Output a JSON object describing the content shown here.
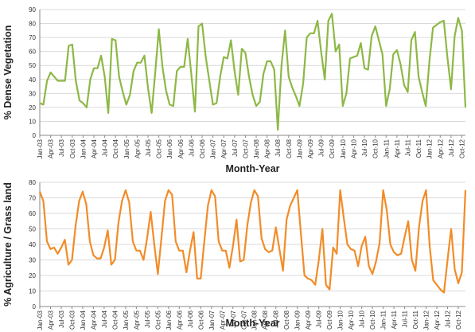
{
  "chart_data": [
    {
      "type": "line",
      "title": "",
      "xlabel": "Month-Year",
      "ylabel": "% Dense Vegetation",
      "ylim": [
        0,
        90
      ],
      "yticks": [
        0,
        10,
        20,
        30,
        40,
        50,
        60,
        70,
        80,
        90
      ],
      "grid": true,
      "color": "#8db845",
      "xtick_labels": [
        "Jan-03",
        "Apr-03",
        "Jul-03",
        "Oct-03",
        "Jan-04",
        "Apr-04",
        "Jul-04",
        "Oct-04",
        "Jan-05",
        "Apr-05",
        "Jul-05",
        "Oct-05",
        "Jan-06",
        "Apr-06",
        "Jul-06",
        "Oct-06",
        "Jan-07",
        "Apr-07",
        "Jul-07",
        "Oct-07",
        "Jan-08",
        "Apr-08",
        "Jul-08",
        "Oct-08",
        "Jan-09",
        "Apr-09",
        "Jul-09",
        "Oct-09",
        "Jan-10",
        "Apr-10",
        "Jul-10",
        "Oct-10",
        "Jan-11",
        "Apr-11",
        "Jul-11",
        "Oct-11",
        "Jan-12",
        "Apr-12",
        "Jul-12",
        "Oct-12"
      ],
      "series": [
        {
          "values": [
            23,
            22,
            39,
            45,
            42,
            39,
            39,
            39,
            64,
            65,
            39,
            25,
            23,
            20,
            40,
            48,
            48,
            57,
            42,
            16,
            69,
            68,
            42,
            31,
            22,
            29,
            46,
            52,
            52,
            57,
            34,
            16,
            45,
            76,
            49,
            32,
            22,
            21,
            46,
            49,
            49,
            69,
            44,
            17,
            78,
            80,
            56,
            39,
            22,
            23,
            42,
            56,
            55,
            68,
            46,
            29,
            62,
            59,
            42,
            29,
            21,
            24,
            44,
            53,
            53,
            47,
            4,
            50,
            75,
            42,
            34,
            28,
            21,
            37,
            70,
            73,
            73,
            82,
            60,
            40,
            82,
            87,
            60,
            65,
            21,
            30,
            55,
            56,
            57,
            66,
            48,
            47,
            71,
            78,
            68,
            58,
            21,
            33,
            58,
            61,
            51,
            36,
            31,
            68,
            74,
            42,
            31,
            21,
            53,
            77,
            79,
            81,
            82,
            56,
            33,
            71,
            84,
            75,
            20
          ]
        }
      ]
    },
    {
      "type": "line",
      "title": "",
      "xlabel": "Month-Year",
      "ylabel": "% Agriculture / Grass land",
      "ylim": [
        0,
        80
      ],
      "yticks": [
        0,
        10,
        20,
        30,
        40,
        50,
        60,
        70,
        80
      ],
      "grid": true,
      "color": "#f28c28",
      "xtick_labels": [
        "Jan-03",
        "Apr-03",
        "Jul-03",
        "Oct-03",
        "Jan-04",
        "Apr-04",
        "Jul-04",
        "Oct-04",
        "Jan-05",
        "Apr-05",
        "Jul-05",
        "Oct-05",
        "Jan-06",
        "Apr-06",
        "Jul-06",
        "Oct-06",
        "Jan-07",
        "Apr-07",
        "Jul-07",
        "Oct-07",
        "Jan-08",
        "Apr-08",
        "Jul-08",
        "Oct-08",
        "Jan-09",
        "Apr-09",
        "Jul-09",
        "Oct-09",
        "Jan-10",
        "Apr-10",
        "Jul-10",
        "Oct-10",
        "Jan-11",
        "Apr-11",
        "Jul-11",
        "Oct-11",
        "Jan-12",
        "Apr-12",
        "Jul-12",
        "Oct-12"
      ],
      "series": [
        {
          "values": [
            74,
            68,
            42,
            37,
            38,
            34,
            38,
            43,
            27,
            30,
            52,
            68,
            74,
            66,
            42,
            33,
            31,
            31,
            38,
            49,
            27,
            30,
            54,
            68,
            75,
            67,
            42,
            36,
            36,
            30,
            44,
            61,
            40,
            21,
            44,
            68,
            75,
            72,
            42,
            36,
            36,
            22,
            36,
            48,
            18,
            18,
            42,
            65,
            75,
            71,
            42,
            36,
            36,
            25,
            39,
            56,
            29,
            30,
            52,
            67,
            75,
            71,
            44,
            37,
            35,
            36,
            51,
            37,
            23,
            56,
            65,
            70,
            75,
            47,
            20,
            18,
            17,
            14,
            30,
            50,
            14,
            11,
            38,
            34,
            75,
            57,
            40,
            37,
            36,
            26,
            39,
            45,
            26,
            21,
            29,
            41,
            75,
            62,
            40,
            35,
            33,
            34,
            45,
            55,
            30,
            23,
            51,
            68,
            75,
            39,
            17,
            14,
            11,
            9,
            30,
            50,
            24,
            15,
            22,
            75
          ]
        }
      ]
    }
  ]
}
